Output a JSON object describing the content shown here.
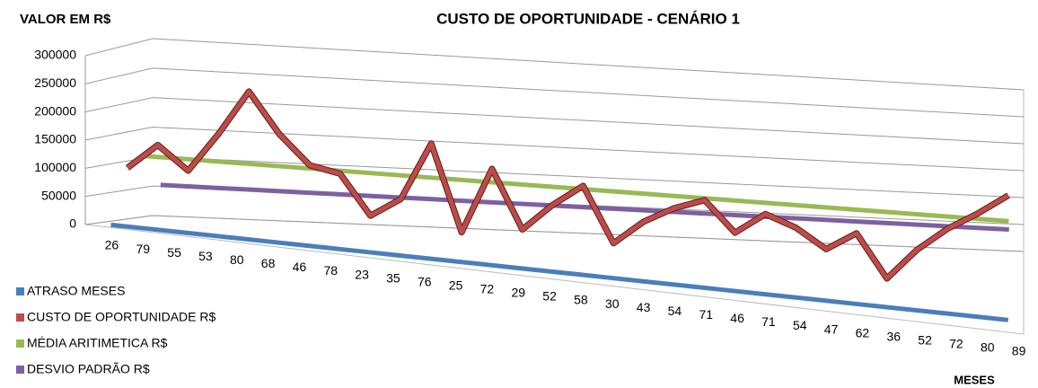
{
  "chart_data": {
    "type": "line3d",
    "title": "CUSTO DE OPORTUNIDADE  - CENÁRIO 1",
    "y_label": "VALOR EM R$",
    "x_label": "MESES",
    "categories": [
      "26",
      "79",
      "55",
      "53",
      "80",
      "68",
      "46",
      "78",
      "23",
      "35",
      "76",
      "25",
      "72",
      "29",
      "52",
      "58",
      "30",
      "43",
      "54",
      "71",
      "46",
      "71",
      "54",
      "47",
      "62",
      "36",
      "52",
      "72",
      "80",
      "89"
    ],
    "ylim": [
      0,
      300000
    ],
    "yticks": [
      0,
      50000,
      100000,
      150000,
      200000,
      250000,
      300000
    ],
    "grid": true,
    "legend": "bottom-left",
    "series": [
      {
        "name": "ATRASO MESES",
        "color": "#4a7ebb",
        "values": [
          26,
          79,
          55,
          53,
          80,
          68,
          46,
          78,
          23,
          35,
          76,
          25,
          72,
          29,
          52,
          58,
          30,
          43,
          54,
          71,
          46,
          71,
          54,
          47,
          62,
          36,
          52,
          72,
          80,
          89
        ]
      },
      {
        "name": "CUSTO DE OPORTUNIDADE R$",
        "color": "#be4b48",
        "values": [
          95000,
          140000,
          100000,
          170000,
          250000,
          180000,
          130000,
          120000,
          50000,
          85000,
          190000,
          35000,
          155000,
          50000,
          100000,
          140000,
          40000,
          85000,
          115000,
          135000,
          80000,
          120000,
          100000,
          65000,
          100000,
          20000,
          80000,
          125000,
          160000,
          200000
        ]
      },
      {
        "name": "MÉDIA ARITIMETICA R$",
        "color": "#98b954",
        "values": [
          110000,
          110000,
          110000,
          110000,
          110000,
          110000,
          110000,
          110000,
          110000,
          110000,
          110000,
          110000,
          110000,
          110000,
          110000,
          110000,
          110000,
          110000,
          110000,
          110000,
          110000,
          110000,
          110000,
          110000,
          110000,
          110000,
          110000,
          110000,
          110000,
          110000
        ]
      },
      {
        "name": "DESVIO PADRÃO R$",
        "color": "#7d60a0",
        "values": [
          55000,
          55000,
          55000,
          55000,
          55000,
          55000,
          55000,
          55000,
          55000,
          55000,
          55000,
          55000,
          55000,
          55000,
          55000,
          55000,
          55000,
          55000,
          55000,
          55000,
          55000,
          55000,
          55000,
          55000,
          55000,
          55000,
          55000,
          55000,
          55000,
          55000
        ]
      }
    ]
  }
}
